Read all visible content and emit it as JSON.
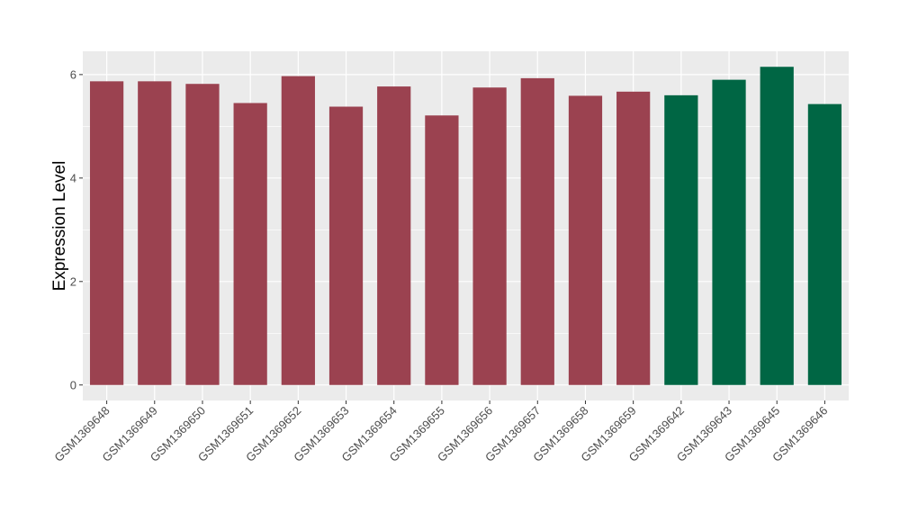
{
  "chart_data": {
    "type": "bar",
    "title": "",
    "xlabel": "",
    "ylabel": "Expression Level",
    "ylim": [
      -0.3,
      6.45
    ],
    "yticks": [
      0,
      2,
      4,
      6
    ],
    "ytick_labels": [
      "0",
      "2",
      "4",
      "6"
    ],
    "grid": true,
    "legend": "none",
    "categories": [
      "GSM1369648",
      "GSM1369649",
      "GSM1369650",
      "GSM1369651",
      "GSM1369652",
      "GSM1369653",
      "GSM1369654",
      "GSM1369655",
      "GSM1369656",
      "GSM1369657",
      "GSM1369658",
      "GSM1369659",
      "GSM1369642",
      "GSM1369643",
      "GSM1369645",
      "GSM1369646"
    ],
    "values": [
      5.87,
      5.87,
      5.82,
      5.45,
      5.97,
      5.38,
      5.77,
      5.21,
      5.75,
      5.93,
      5.59,
      5.67,
      5.6,
      5.9,
      6.15,
      5.43
    ],
    "groups": [
      0,
      0,
      0,
      0,
      0,
      0,
      0,
      0,
      0,
      0,
      0,
      0,
      1,
      1,
      1,
      1
    ],
    "group_colors": [
      "#9b4250",
      "#006644"
    ],
    "panel_background": "#ebebeb",
    "grid_color": "#ffffff"
  }
}
